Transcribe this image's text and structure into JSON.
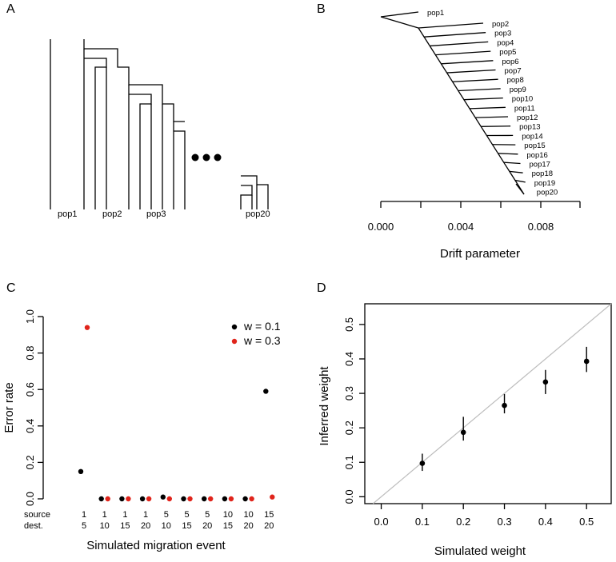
{
  "panels": {
    "a": {
      "letter": "A",
      "labels": [
        "pop1",
        "pop2",
        "pop3",
        "pop20"
      ]
    },
    "b": {
      "letter": "B",
      "xlabel": "Drift parameter",
      "xticks": [
        "0.000",
        "0.004",
        "0.008"
      ],
      "pops": [
        "pop1",
        "pop2",
        "pop3",
        "pop4",
        "pop5",
        "pop6",
        "pop7",
        "pop8",
        "pop9",
        "pop10",
        "pop11",
        "pop12",
        "pop13",
        "pop14",
        "pop15",
        "pop16",
        "pop17",
        "pop18",
        "pop19",
        "pop20"
      ]
    },
    "c": {
      "letter": "C",
      "row_labels": [
        "source",
        "dest."
      ]
    },
    "d": {
      "letter": "D"
    }
  },
  "chart_data": [
    {
      "id": "C",
      "type": "scatter",
      "ylabel": "Error rate",
      "xlabel": "Simulated migration event",
      "ylim": [
        0,
        1
      ],
      "yticks": [
        "0.0",
        "0.2",
        "0.4",
        "0.6",
        "0.8",
        "1.0"
      ],
      "categories": [
        {
          "source": "1",
          "dest": "5"
        },
        {
          "source": "1",
          "dest": "10"
        },
        {
          "source": "1",
          "dest": "15"
        },
        {
          "source": "1",
          "dest": "20"
        },
        {
          "source": "5",
          "dest": "10"
        },
        {
          "source": "5",
          "dest": "15"
        },
        {
          "source": "5",
          "dest": "20"
        },
        {
          "source": "10",
          "dest": "15"
        },
        {
          "source": "10",
          "dest": "20"
        },
        {
          "source": "15",
          "dest": "20"
        }
      ],
      "series": [
        {
          "name": "w = 0.1",
          "color": "#000000",
          "values": [
            0.15,
            0.0,
            0.0,
            0.0,
            0.01,
            0.0,
            0.0,
            0.0,
            0.0,
            0.59
          ]
        },
        {
          "name": "w = 0.3",
          "color": "#e0241b",
          "values": [
            0.94,
            0.0,
            0.0,
            0.0,
            0.0,
            0.0,
            0.0,
            0.0,
            0.0,
            0.01
          ]
        }
      ],
      "legend": "top-right"
    },
    {
      "id": "D",
      "type": "scatter",
      "xlabel": "Simulated weight",
      "ylabel": "Inferred weight",
      "xlim": [
        -0.04,
        0.56
      ],
      "ylim": [
        -0.02,
        0.56
      ],
      "xticks": [
        "0.0",
        "0.1",
        "0.2",
        "0.3",
        "0.4",
        "0.5"
      ],
      "yticks": [
        "0.0",
        "0.1",
        "0.2",
        "0.3",
        "0.4",
        "0.5"
      ],
      "x": [
        0.1,
        0.2,
        0.3,
        0.4,
        0.5
      ],
      "y": [
        0.097,
        0.187,
        0.265,
        0.333,
        0.393
      ],
      "err_low": [
        0.075,
        0.163,
        0.242,
        0.298,
        0.362
      ],
      "err_high": [
        0.125,
        0.232,
        0.298,
        0.368,
        0.435
      ],
      "reference_line": "y = x",
      "reference_color": "#bdbdbd"
    }
  ]
}
